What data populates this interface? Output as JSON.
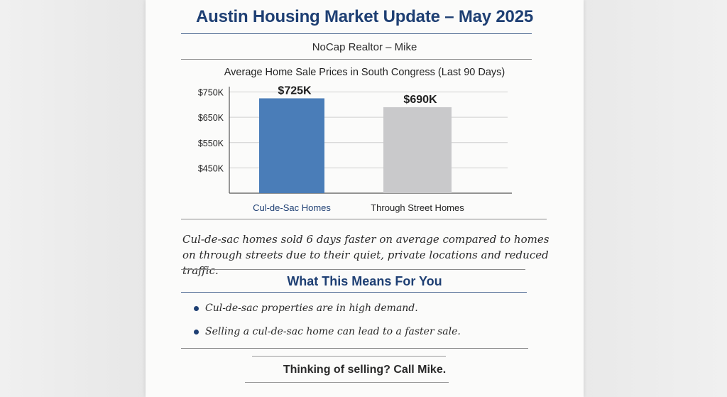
{
  "document": {
    "title": "Austin Housing Market Update – May 2025",
    "subtitle": "NoCap Realtor – Mike",
    "insight": "Cul-de-sac homes sold 6 days faster on average compared to homes on through streets due to their quiet, private locations and reduced traffic.",
    "section_heading": "What This Means For You",
    "bullets": [
      "Cul-de-sac properties are in high demand.",
      "Selling a cul-de-sac home can lead to a faster sale."
    ],
    "cta": "Thinking of selling? Call Mike."
  },
  "chart_data": {
    "type": "bar",
    "title": "Average Home Sale Prices in South Congress (Last 90 Days)",
    "categories": [
      "Cul-de-Sac Homes",
      "Through Street Homes"
    ],
    "values": [
      725,
      690
    ],
    "data_labels": [
      "$725K",
      "$690K"
    ],
    "y_ticks": [
      450,
      550,
      650,
      750
    ],
    "y_tick_labels": [
      "$450K",
      "$550K",
      "$650K",
      "$750K"
    ],
    "ylim": [
      350,
      760
    ],
    "grid": true,
    "colors": [
      "#4a7db8",
      "#c9c9cb"
    ],
    "category_label_colors": [
      "#1e3f73",
      "#222222"
    ]
  }
}
